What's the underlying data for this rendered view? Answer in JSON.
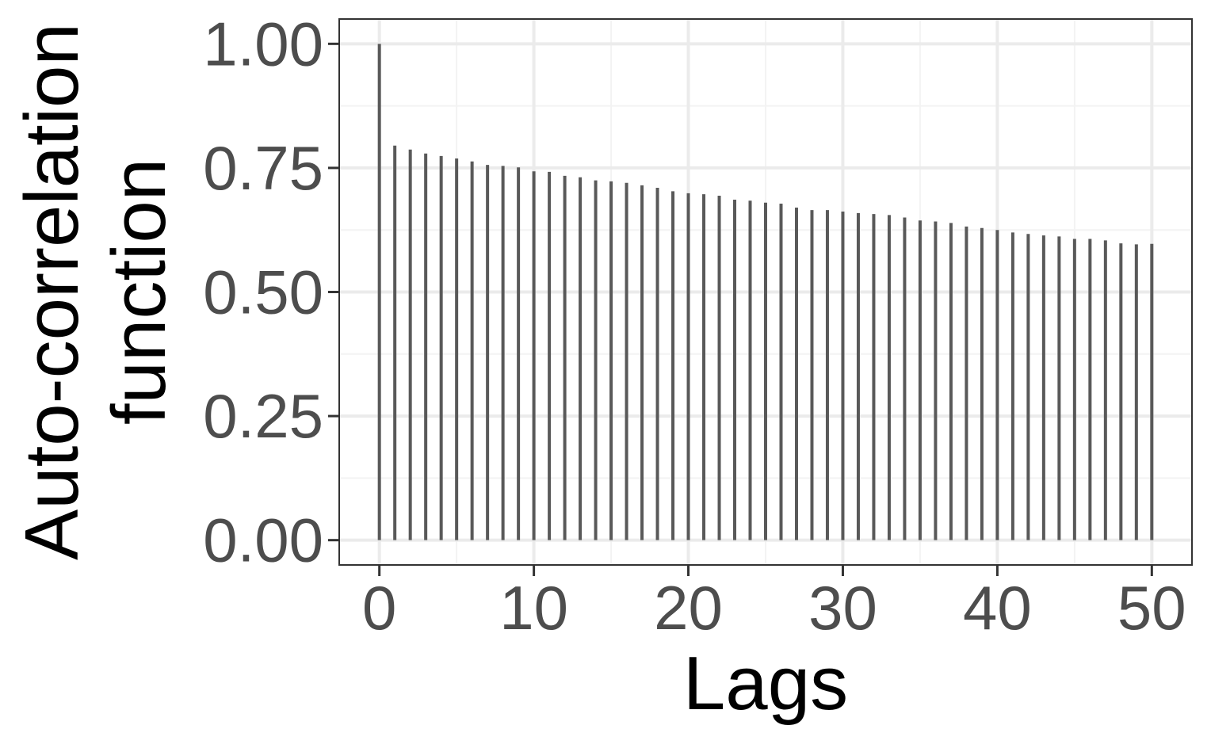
{
  "chart_data": {
    "type": "bar",
    "title": "",
    "xlabel": "Lags",
    "ylabel_lines": [
      "Auto-correlation",
      "function"
    ],
    "xlim": [
      -2.6,
      52.6
    ],
    "ylim": [
      -0.05,
      1.05
    ],
    "x_ticks": [
      0,
      10,
      20,
      30,
      40,
      50
    ],
    "x_tick_labels": [
      "0",
      "10",
      "20",
      "30",
      "40",
      "50"
    ],
    "y_ticks": [
      0.0,
      0.25,
      0.5,
      0.75,
      1.0
    ],
    "y_tick_labels": [
      "0.00",
      "0.25",
      "0.50",
      "0.75",
      "1.00"
    ],
    "grid": true,
    "legend": "none",
    "x": [
      0,
      1,
      2,
      3,
      4,
      5,
      6,
      7,
      8,
      9,
      10,
      11,
      12,
      13,
      14,
      15,
      16,
      17,
      18,
      19,
      20,
      21,
      22,
      23,
      24,
      25,
      26,
      27,
      28,
      29,
      30,
      31,
      32,
      33,
      34,
      35,
      36,
      37,
      38,
      39,
      40,
      41,
      42,
      43,
      44,
      45,
      46,
      47,
      48,
      49,
      50
    ],
    "values": [
      1.0,
      0.795,
      0.787,
      0.779,
      0.774,
      0.769,
      0.763,
      0.756,
      0.754,
      0.751,
      0.743,
      0.742,
      0.734,
      0.731,
      0.725,
      0.723,
      0.72,
      0.715,
      0.71,
      0.703,
      0.699,
      0.697,
      0.694,
      0.686,
      0.684,
      0.68,
      0.678,
      0.67,
      0.665,
      0.665,
      0.662,
      0.659,
      0.657,
      0.655,
      0.65,
      0.644,
      0.642,
      0.639,
      0.632,
      0.629,
      0.625,
      0.62,
      0.617,
      0.614,
      0.612,
      0.607,
      0.607,
      0.604,
      0.598,
      0.596,
      0.597
    ],
    "colors": {
      "bar": "#595959",
      "panel_border": "#333333",
      "grid_major": "#ebebeb",
      "grid_minor": "#f3f3f3",
      "tick_label": "#4d4d4d",
      "axis_title": "#000000"
    }
  }
}
